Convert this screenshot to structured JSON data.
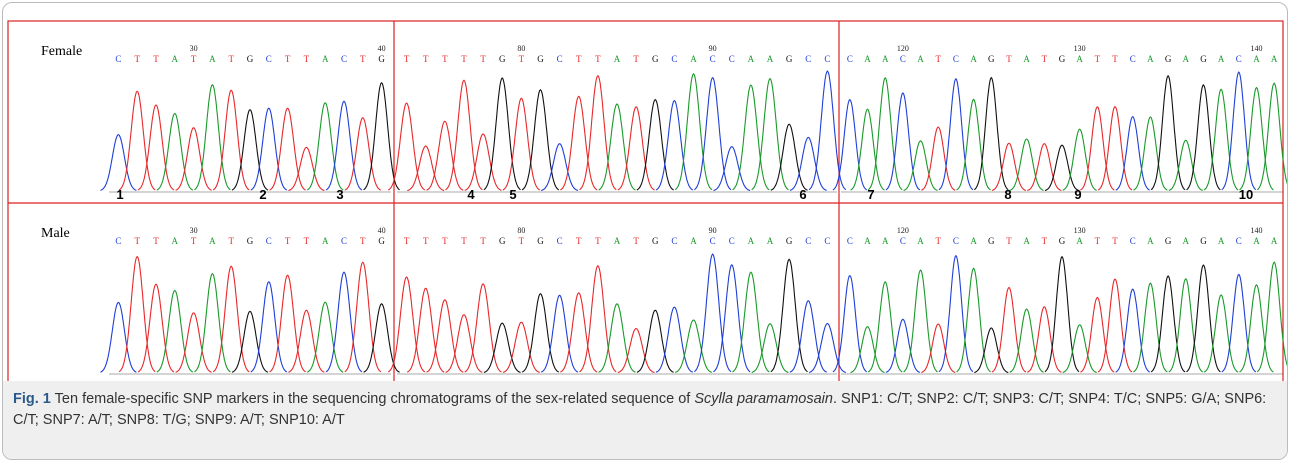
{
  "figure": {
    "panels": [
      {
        "label": "Female",
        "segments": [
          {
            "bases": [
              "C",
              "T",
              "T",
              "A",
              "T",
              "A",
              "T",
              "G",
              "C",
              "T",
              "T",
              "A",
              "C",
              "T",
              "G"
            ],
            "positions": [
              null,
              null,
              null,
              null,
              30,
              null,
              null,
              null,
              null,
              null,
              null,
              null,
              null,
              null,
              40
            ]
          },
          {
            "bases": [
              "T",
              "T",
              "T",
              "T",
              "T",
              "G",
              "T",
              "G",
              "C",
              "T",
              "T",
              "A",
              "T",
              "G",
              "C",
              "A",
              "C",
              "C",
              "A",
              "A",
              "G",
              "C",
              "C"
            ],
            "positions": [
              null,
              null,
              null,
              null,
              null,
              null,
              80,
              null,
              null,
              null,
              null,
              null,
              null,
              null,
              null,
              null,
              90,
              null,
              null,
              null,
              null,
              null,
              null
            ]
          },
          {
            "bases": [
              "C",
              "A",
              "A",
              "C",
              "A",
              "T",
              "C",
              "A",
              "G",
              "T",
              "A",
              "T",
              "G",
              "A",
              "T",
              "T",
              "C",
              "A",
              "G",
              "A",
              "G",
              "A",
              "C",
              "A",
              "A"
            ],
            "positions": [
              null,
              null,
              null,
              120,
              null,
              null,
              null,
              null,
              null,
              null,
              null,
              null,
              null,
              130,
              null,
              null,
              null,
              null,
              null,
              null,
              null,
              null,
              null,
              140,
              null
            ]
          }
        ]
      },
      {
        "label": "Male",
        "segments": [
          {
            "bases": [
              "C",
              "T",
              "T",
              "A",
              "T",
              "A",
              "T",
              "G",
              "C",
              "T",
              "T",
              "A",
              "C",
              "T",
              "G"
            ],
            "positions": [
              null,
              null,
              null,
              null,
              30,
              null,
              null,
              null,
              null,
              null,
              null,
              null,
              null,
              null,
              40
            ]
          },
          {
            "bases": [
              "T",
              "T",
              "T",
              "T",
              "T",
              "G",
              "T",
              "G",
              "C",
              "T",
              "T",
              "A",
              "T",
              "G",
              "C",
              "A",
              "C",
              "C",
              "A",
              "A",
              "G",
              "C",
              "C"
            ],
            "positions": [
              null,
              null,
              null,
              null,
              null,
              null,
              80,
              null,
              null,
              null,
              null,
              null,
              null,
              null,
              null,
              null,
              90,
              null,
              null,
              null,
              null,
              null,
              null
            ]
          },
          {
            "bases": [
              "C",
              "A",
              "A",
              "C",
              "A",
              "T",
              "C",
              "A",
              "G",
              "T",
              "A",
              "T",
              "G",
              "A",
              "T",
              "T",
              "C",
              "A",
              "G",
              "A",
              "G",
              "A",
              "C",
              "A",
              "A"
            ],
            "positions": [
              null,
              null,
              null,
              120,
              null,
              null,
              null,
              null,
              null,
              null,
              null,
              null,
              null,
              130,
              null,
              null,
              null,
              null,
              null,
              null,
              null,
              null,
              null,
              140,
              null
            ]
          }
        ]
      }
    ],
    "snp_numbers": [
      1,
      2,
      3,
      4,
      5,
      6,
      7,
      8,
      9,
      10
    ],
    "caption": {
      "label": "Fig. 1",
      "text": "Ten female-specific SNP markers in the sequencing chromatograms of the sex-related sequence of",
      "species": "Scylla paramamosain",
      "rest": ". SNP1: C/T; SNP2: C/T; SNP3: C/T; SNP4: T/C; SNP5: G/A; SNP6: C/T; SNP7: A/T; SNP8: T/G; SNP9: A/T; SNP10: A/T"
    }
  }
}
